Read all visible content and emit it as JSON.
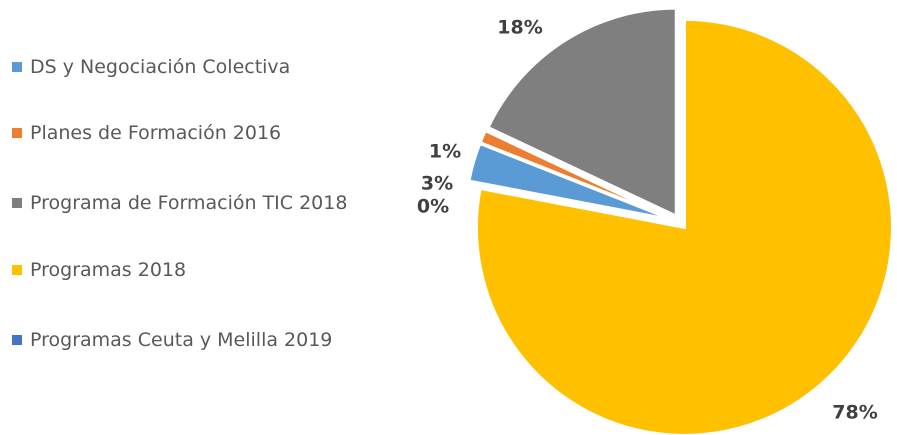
{
  "chart_data": {
    "type": "pie",
    "categories": [
      "DS y Negociación Colectiva",
      "Planes de Formación 2016",
      "Programa de Formación TIC 2018",
      "Programas 2018",
      "Programas Ceuta y Melilla 2019"
    ],
    "values": [
      3,
      1,
      18,
      78,
      0
    ],
    "value_labels": [
      "3%",
      "1%",
      "18%",
      "78%",
      "0%"
    ],
    "colors": [
      "#5b9bd5",
      "#ed7d31",
      "#7f7f7f",
      "#ffc000",
      "#4472c4"
    ],
    "legend": "left"
  }
}
